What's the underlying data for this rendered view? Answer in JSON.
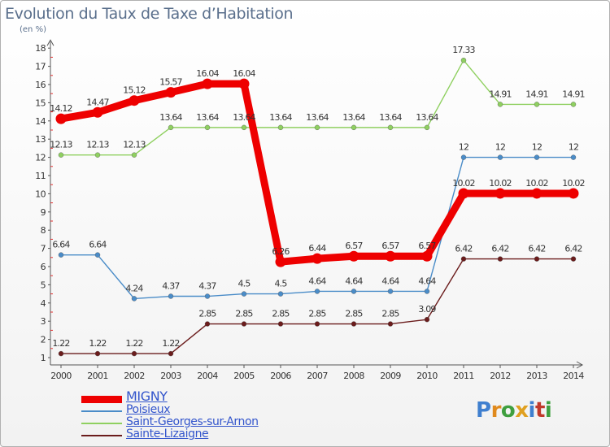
{
  "title": "Evolution du Taux de Taxe d’Habitation",
  "subtitle": "(en %)",
  "logo": {
    "letters": [
      "P",
      "r",
      "o",
      "x",
      "i",
      "t",
      "i"
    ],
    "colors": [
      "#3f7fcf",
      "#e08a1e",
      "#3f9f3f",
      "#e0a020",
      "#3f7fcf",
      "#c0392b",
      "#3f9f3f"
    ]
  },
  "chart_data": {
    "type": "line",
    "x": [
      2000,
      2001,
      2002,
      2003,
      2004,
      2005,
      2006,
      2007,
      2008,
      2009,
      2010,
      2011,
      2012,
      2013,
      2014
    ],
    "ylim": [
      1,
      18
    ],
    "yticks": [
      1,
      2,
      3,
      4,
      5,
      6,
      7,
      8,
      9,
      10,
      11,
      12,
      13,
      14,
      15,
      16,
      17,
      18
    ],
    "grid": false,
    "legend": "bottom-left",
    "series": [
      {
        "name": "MIGNY",
        "color": "#ee0000",
        "values": [
          14.12,
          14.47,
          15.12,
          15.57,
          16.04,
          16.04,
          6.26,
          6.44,
          6.57,
          6.57,
          6.57,
          10.02,
          10.02,
          10.02,
          10.02
        ],
        "labels": [
          "14.12",
          "14.47",
          "15.12",
          "15.57",
          "16.04",
          "16.04",
          "6.26",
          "6.44",
          "6.57",
          "6.57",
          "6.57",
          "10.02",
          "10.02",
          "10.02",
          "10.02"
        ]
      },
      {
        "name": "Poisieux",
        "color": "#4a8cc8",
        "values": [
          6.64,
          6.64,
          4.24,
          4.37,
          4.37,
          4.5,
          4.5,
          4.64,
          4.64,
          4.64,
          4.64,
          12,
          12,
          12,
          12
        ],
        "labels": [
          "6.64",
          "6.64",
          "4.24",
          "4.37",
          "4.37",
          "4.5",
          "4.5",
          "4.64",
          "4.64",
          "4.64",
          "4.64",
          "12",
          "12",
          "12",
          "12"
        ]
      },
      {
        "name": "Saint-Georges-sur-Arnon",
        "color": "#8fd060",
        "values": [
          12.13,
          12.13,
          12.13,
          13.64,
          13.64,
          13.64,
          13.64,
          13.64,
          13.64,
          13.64,
          13.64,
          17.33,
          14.91,
          14.91,
          14.91
        ],
        "labels": [
          "12.13",
          "12.13",
          "12.13",
          "13.64",
          "13.64",
          "13.64",
          "13.64",
          "13.64",
          "13.64",
          "13.64",
          "13.64",
          "17.33",
          "14.91",
          "14.91",
          "14.91"
        ]
      },
      {
        "name": "Sainte-Lizaigne",
        "color": "#6b1c1c",
        "values": [
          1.22,
          1.22,
          1.22,
          1.22,
          2.85,
          2.85,
          2.85,
          2.85,
          2.85,
          2.85,
          3.09,
          6.42,
          6.42,
          6.42,
          6.42
        ],
        "labels": [
          "1.22",
          "1.22",
          "1.22",
          "1.22",
          "2.85",
          "2.85",
          "2.85",
          "2.85",
          "2.85",
          "2.85",
          "3.09",
          "6.42",
          "6.42",
          "6.42",
          "6.42"
        ]
      }
    ]
  }
}
